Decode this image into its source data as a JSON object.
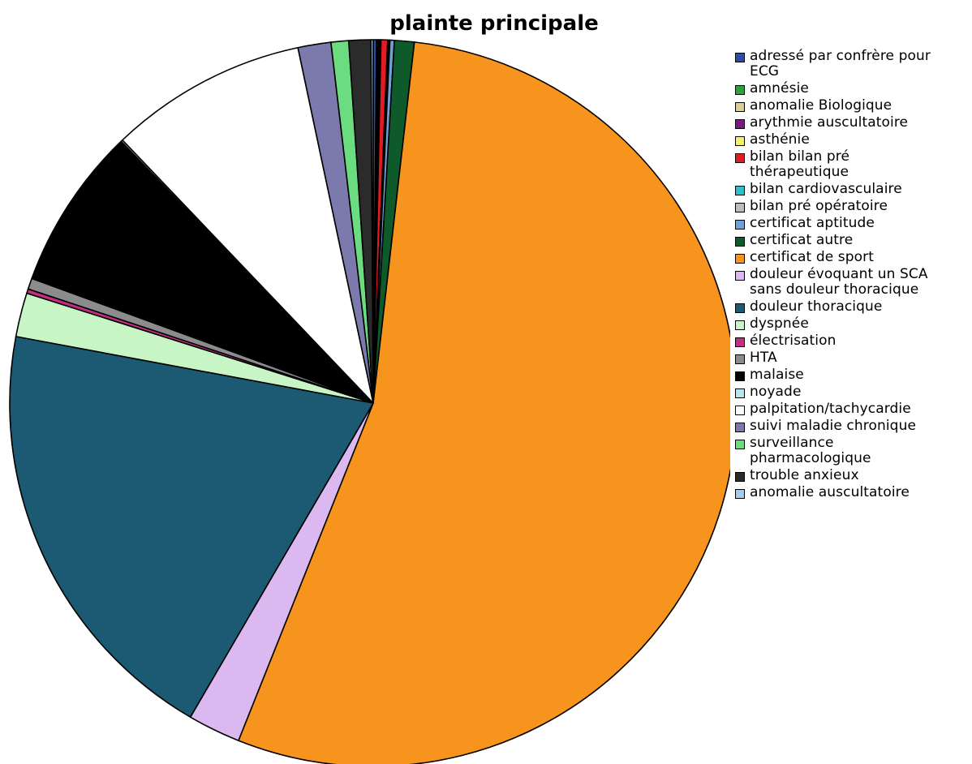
{
  "chart_data": {
    "type": "pie",
    "title": "plainte principale",
    "legend_position": "right",
    "start_angle_deg": 0,
    "direction": "clockwise",
    "slices": [
      {
        "label": "adressé par confrère pour\nECG",
        "value": 0.15,
        "color": "#2b4ea0"
      },
      {
        "label": "amnésie",
        "value": 0.05,
        "color": "#26a33c"
      },
      {
        "label": "anomalie Biologique",
        "value": 0.05,
        "color": "#d8cf9a"
      },
      {
        "label": "arythmie auscultatoire",
        "value": 0.05,
        "color": "#7a1a7e"
      },
      {
        "label": "asthénie",
        "value": 0.05,
        "color": "#f5f06a"
      },
      {
        "label": "bilan bilan pré\nthérapeutique",
        "value": 0.3,
        "color": "#e31b23"
      },
      {
        "label": "bilan cardiovasculaire",
        "value": 0.05,
        "color": "#2ec0c8"
      },
      {
        "label": "bilan pré opératoire",
        "value": 0.05,
        "color": "#bdbdbd"
      },
      {
        "label": "certificat aptitude",
        "value": 0.2,
        "color": "#6fa0d8"
      },
      {
        "label": "certificat autre",
        "value": 0.9,
        "color": "#0f5a2a"
      },
      {
        "label": "certificat de sport",
        "value": 55.5,
        "color": "#f7941d"
      },
      {
        "label": "douleur évoquant un SCA\nsans douleur thoracique",
        "value": 2.4,
        "color": "#dbb8ef"
      },
      {
        "label": "douleur thoracique",
        "value": 20.0,
        "color": "#1b5a72"
      },
      {
        "label": "dyspnée",
        "value": 2.0,
        "color": "#c7f5c5"
      },
      {
        "label": "électrisation",
        "value": 0.2,
        "color": "#c42e82"
      },
      {
        "label": "HTA",
        "value": 0.5,
        "color": "#8c8c8c"
      },
      {
        "label": "malaise",
        "value": 7.4,
        "color": "#000000"
      },
      {
        "label": "noyade",
        "value": 0.08,
        "color": "#b4e6ec"
      },
      {
        "label": "palpitation/tachycardie",
        "value": 9.0,
        "color": "#ffffff"
      },
      {
        "label": "suivi maladie chronique",
        "value": 1.5,
        "color": "#7c7aac"
      },
      {
        "label": "surveillance\npharmacologique",
        "value": 0.8,
        "color": "#6cdc80"
      },
      {
        "label": "trouble anxieux",
        "value": 1.0,
        "color": "#2b2b2b"
      },
      {
        "label": "anomalie auscultatoire",
        "value": 0.1,
        "color": "#a3cdea"
      }
    ]
  }
}
